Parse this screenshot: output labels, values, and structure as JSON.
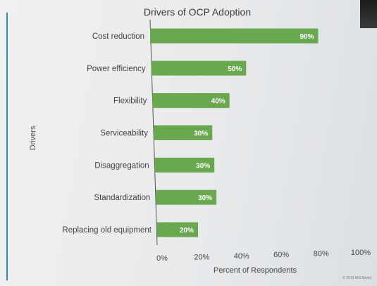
{
  "chart_data": {
    "type": "bar",
    "orientation": "horizontal",
    "title": "Drivers of OCP Adoption",
    "xlabel": "Percent of Respondents",
    "ylabel": "Drivers",
    "categories": [
      "Cost reduction",
      "Power efficiency",
      "Flexibility",
      "Serviceability",
      "Disaggregation",
      "Standardization",
      "Replacing old equipment"
    ],
    "values": [
      90,
      50,
      40,
      30,
      30,
      30,
      20
    ],
    "value_labels": [
      "90%",
      "50%",
      "40%",
      "30%",
      "30%",
      "30%",
      "20%"
    ],
    "xlim": [
      0,
      100
    ],
    "xticks": [
      0,
      20,
      40,
      60,
      80,
      100
    ],
    "xtick_labels": [
      "0%",
      "20%",
      "40%",
      "60%",
      "80%",
      "100%"
    ],
    "grid": false,
    "bar_color": "#6aa84f"
  },
  "footer": {
    "copyright": "© 2019 IHS Markit"
  }
}
